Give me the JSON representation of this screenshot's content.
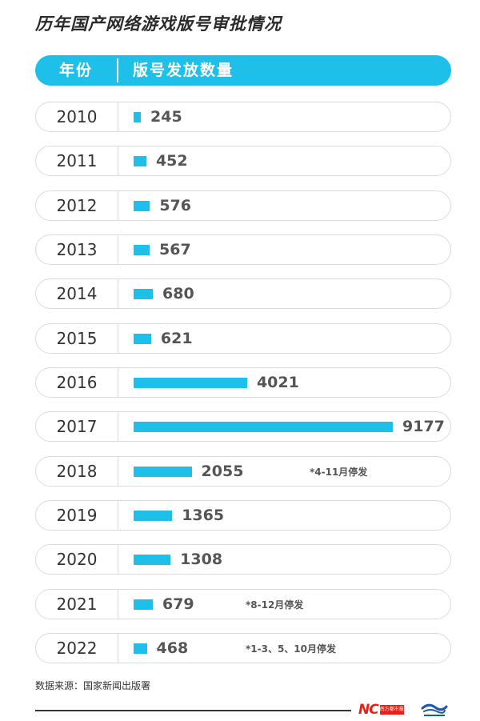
{
  "title": "历年国产网络游戏版号审批情况",
  "header": {
    "year_label": "年份",
    "count_label": "版号发放数量"
  },
  "chart_data": {
    "type": "bar",
    "title": "历年国产网络游戏版号审批情况",
    "xlabel": "年份",
    "ylabel": "版号发放数量",
    "orientation": "horizontal",
    "categories": [
      "2010",
      "2011",
      "2012",
      "2013",
      "2014",
      "2015",
      "2016",
      "2017",
      "2018",
      "2019",
      "2020",
      "2021",
      "2022"
    ],
    "values": [
      245,
      452,
      576,
      567,
      680,
      621,
      4021,
      9177,
      2055,
      1365,
      1308,
      679,
      468
    ],
    "value_labels": [
      "245",
      "452",
      "576",
      "567",
      "680",
      "621",
      "4021",
      "9177",
      "2055",
      "1365",
      "1308",
      "679",
      "468"
    ],
    "notes": {
      "2018": "*4-11月停发",
      "2021": "*8-12月停发",
      "2022": "*1-3、5、10月停发"
    },
    "bar_color": "#1ec0ea"
  },
  "source": "数据来源：国家新闻出版署",
  "logos": {
    "nc_text": "NC",
    "nc_box_text": "南方都市报"
  }
}
